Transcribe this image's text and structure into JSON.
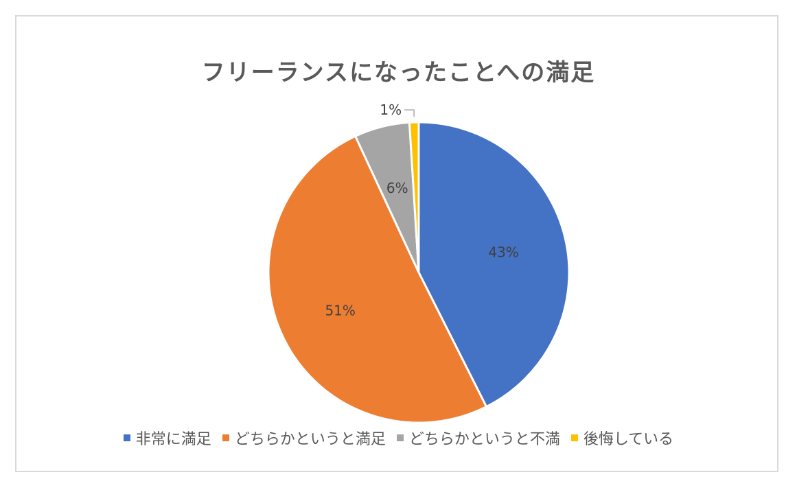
{
  "chart_data": {
    "type": "pie",
    "title": "フリーランスになったことへの満足",
    "categories": [
      "非常に満足",
      "どちらかというと満足",
      "どちらかというと不満",
      "後悔している"
    ],
    "values": [
      43,
      51,
      6,
      1
    ],
    "data_labels": [
      "43%",
      "51%",
      "6%",
      "1%"
    ],
    "colors": [
      "#4472C4",
      "#ED7D31",
      "#A5A5A5",
      "#FFC000"
    ],
    "legend_position": "bottom"
  }
}
